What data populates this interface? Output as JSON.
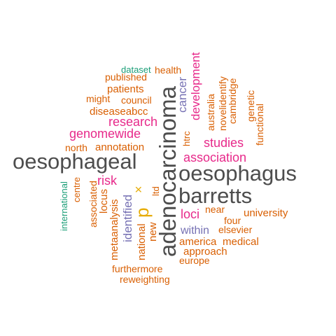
{
  "colors": {
    "gray": "#4d4d4d",
    "pink": "#e7298a",
    "orange": "#d95f02",
    "purple": "#7570b3",
    "green": "#1b9e77",
    "gold": "#e6ab02"
  },
  "words": [
    {
      "text": "adenocarcinoma",
      "color": "gray",
      "rotated": true
    },
    {
      "text": "oesophageal",
      "color": "gray",
      "rotated": false
    },
    {
      "text": "oesophagus",
      "color": "gray",
      "rotated": false
    },
    {
      "text": "barretts",
      "color": "gray",
      "rotated": false
    },
    {
      "text": "research",
      "color": "pink",
      "rotated": false
    },
    {
      "text": "genomewide",
      "color": "pink",
      "rotated": false
    },
    {
      "text": "association",
      "color": "pink",
      "rotated": false
    },
    {
      "text": "studies",
      "color": "pink",
      "rotated": false
    },
    {
      "text": "development",
      "color": "pink",
      "rotated": true
    },
    {
      "text": "risk",
      "color": "pink",
      "rotated": false
    },
    {
      "text": "loci",
      "color": "pink",
      "rotated": false
    },
    {
      "text": "p",
      "color": "gold",
      "rotated": true
    },
    {
      "text": "×",
      "color": "gold",
      "rotated": true
    },
    {
      "text": "cancer",
      "color": "purple",
      "rotated": true
    },
    {
      "text": "identified",
      "color": "purple",
      "rotated": true
    },
    {
      "text": "within",
      "color": "purple",
      "rotated": false
    },
    {
      "text": "dataset",
      "color": "green",
      "rotated": false
    },
    {
      "text": "international",
      "color": "green",
      "rotated": true
    },
    {
      "text": "health",
      "color": "orange",
      "rotated": false
    },
    {
      "text": "published",
      "color": "orange",
      "rotated": false
    },
    {
      "text": "patients",
      "color": "orange",
      "rotated": false
    },
    {
      "text": "might",
      "color": "orange",
      "rotated": false
    },
    {
      "text": "council",
      "color": "orange",
      "rotated": false
    },
    {
      "text": "diseaseabcc",
      "color": "orange",
      "rotated": false
    },
    {
      "text": "north",
      "color": "orange",
      "rotated": false
    },
    {
      "text": "annotation",
      "color": "orange",
      "rotated": false
    },
    {
      "text": "htrc",
      "color": "orange",
      "rotated": true
    },
    {
      "text": "australia",
      "color": "orange",
      "rotated": true
    },
    {
      "text": "novelidentify",
      "color": "orange",
      "rotated": true
    },
    {
      "text": "cambridge",
      "color": "orange",
      "rotated": true
    },
    {
      "text": "genetic",
      "color": "orange",
      "rotated": true
    },
    {
      "text": "functional",
      "color": "orange",
      "rotated": true
    },
    {
      "text": "centre",
      "color": "orange",
      "rotated": true
    },
    {
      "text": "associated",
      "color": "orange",
      "rotated": true
    },
    {
      "text": "locus",
      "color": "orange",
      "rotated": true
    },
    {
      "text": "metaanalysis",
      "color": "orange",
      "rotated": true
    },
    {
      "text": "national",
      "color": "orange",
      "rotated": true
    },
    {
      "text": "new",
      "color": "orange",
      "rotated": true
    },
    {
      "text": "ltd",
      "color": "orange",
      "rotated": true
    },
    {
      "text": "near",
      "color": "orange",
      "rotated": false
    },
    {
      "text": "four",
      "color": "orange",
      "rotated": false
    },
    {
      "text": "university",
      "color": "orange",
      "rotated": false
    },
    {
      "text": "elsevier",
      "color": "orange",
      "rotated": false
    },
    {
      "text": "america",
      "color": "orange",
      "rotated": false
    },
    {
      "text": "medical",
      "color": "orange",
      "rotated": false
    },
    {
      "text": "approach",
      "color": "orange",
      "rotated": false
    },
    {
      "text": "europe",
      "color": "orange",
      "rotated": false
    },
    {
      "text": "furthermore",
      "color": "orange",
      "rotated": false
    },
    {
      "text": "reweighting",
      "color": "orange",
      "rotated": false
    }
  ]
}
